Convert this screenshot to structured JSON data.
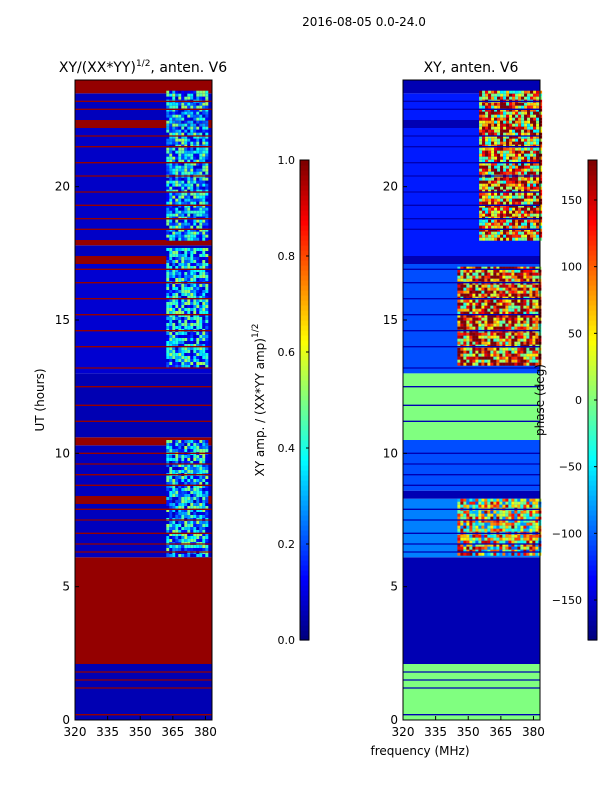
{
  "figure": {
    "suptitle": "2016-08-05 0.0-24.0",
    "shared_xlabel": "frequency (MHz)"
  },
  "chart_data": [
    {
      "type": "heatmap",
      "title": "XY/(XX*YY)",
      "title_exp": "1/2",
      "title_tail": ", anten. V6",
      "xlabel": "",
      "ylabel": "UT (hours)",
      "xlim": [
        320,
        383
      ],
      "ylim": [
        0,
        24
      ],
      "xticks": [
        320,
        335,
        350,
        365,
        380
      ],
      "yticks": [
        0,
        5,
        10,
        15,
        20
      ],
      "colorbar": {
        "label": "XY amp. / (XX*YY amp)",
        "label_exp": "1/2",
        "range": [
          0.0,
          1.0
        ],
        "ticks": [
          "0.0",
          "0.2",
          "0.4",
          "0.6",
          "0.8",
          "1.0"
        ],
        "tick_values": [
          0.0,
          0.2,
          0.4,
          0.6,
          0.8,
          1.0
        ],
        "colormap": "jet"
      },
      "bands": [
        {
          "t0": 0.0,
          "t1": 0.3,
          "value": 0.05
        },
        {
          "t0": 0.3,
          "t1": 2.1,
          "value": 0.05
        },
        {
          "t0": 2.1,
          "t1": 6.1,
          "value": 0.98
        },
        {
          "t0": 6.1,
          "t1": 8.1,
          "value": 0.06
        },
        {
          "t0": 8.1,
          "t1": 8.4,
          "value": 0.98
        },
        {
          "t0": 8.4,
          "t1": 10.3,
          "value": 0.06
        },
        {
          "t0": 10.3,
          "t1": 10.6,
          "value": 0.98
        },
        {
          "t0": 10.6,
          "t1": 13.0,
          "value": 0.05
        },
        {
          "t0": 13.0,
          "t1": 17.1,
          "value": 0.08
        },
        {
          "t0": 17.1,
          "t1": 17.4,
          "value": 0.98
        },
        {
          "t0": 17.4,
          "t1": 17.8,
          "value": 0.06
        },
        {
          "t0": 17.8,
          "t1": 18.0,
          "value": 0.98
        },
        {
          "t0": 18.0,
          "t1": 22.2,
          "value": 0.07
        },
        {
          "t0": 22.2,
          "t1": 22.5,
          "value": 0.98
        },
        {
          "t0": 22.5,
          "t1": 23.5,
          "value": 0.06
        },
        {
          "t0": 23.5,
          "t1": 24.0,
          "value": 0.98
        }
      ],
      "lines": [
        0.2,
        1.2,
        1.5,
        1.8,
        6.3,
        6.6,
        7.0,
        7.5,
        7.9,
        8.8,
        9.2,
        9.6,
        10.0,
        11.2,
        11.8,
        12.5,
        13.2,
        14.0,
        14.6,
        15.2,
        15.8,
        16.4,
        16.9,
        18.4,
        18.8,
        19.3,
        19.8,
        20.4,
        20.9,
        21.5,
        21.9,
        22.9,
        23.2
      ],
      "line_value": 0.98,
      "active_regions": [
        {
          "f0": 362,
          "f1": 380,
          "t0": 6.2,
          "t1": 10.5,
          "value": 0.3
        },
        {
          "f0": 362,
          "f1": 380,
          "t0": 13.3,
          "t1": 17.7,
          "value": 0.3
        },
        {
          "f0": 362,
          "f1": 380,
          "t0": 18.0,
          "t1": 23.6,
          "value": 0.3
        }
      ]
    },
    {
      "type": "heatmap",
      "title": "XY, anten. V6",
      "xlabel": "",
      "ylabel": "",
      "xlim": [
        320,
        383
      ],
      "ylim": [
        0,
        24
      ],
      "xticks": [
        320,
        335,
        350,
        365,
        380
      ],
      "yticks": [
        0,
        5,
        10,
        15,
        20
      ],
      "colorbar": {
        "label": "phase (deg)",
        "range": [
          -180,
          180
        ],
        "ticks": [
          "−150",
          "−100",
          "−50",
          "0",
          "50",
          "100",
          "150"
        ],
        "tick_values": [
          -150,
          -100,
          -50,
          0,
          50,
          100,
          150
        ],
        "colormap": "jet"
      },
      "bands": [
        {
          "t0": 0.0,
          "t1": 0.3,
          "value": 0.5
        },
        {
          "t0": 0.3,
          "t1": 2.1,
          "value": 0.5
        },
        {
          "t0": 2.1,
          "t1": 6.1,
          "value": 0.05
        },
        {
          "t0": 6.1,
          "t1": 8.3,
          "value": 0.25
        },
        {
          "t0": 8.3,
          "t1": 8.6,
          "value": 0.05
        },
        {
          "t0": 8.6,
          "t1": 10.5,
          "value": 0.2
        },
        {
          "t0": 10.5,
          "t1": 13.0,
          "value": 0.5
        },
        {
          "t0": 13.0,
          "t1": 17.1,
          "value": 0.2
        },
        {
          "t0": 17.1,
          "t1": 17.4,
          "value": 0.05
        },
        {
          "t0": 17.4,
          "t1": 22.2,
          "value": 0.15
        },
        {
          "t0": 22.2,
          "t1": 22.5,
          "value": 0.05
        },
        {
          "t0": 22.5,
          "t1": 23.5,
          "value": 0.15
        },
        {
          "t0": 23.5,
          "t1": 24.0,
          "value": 0.05
        }
      ],
      "lines": [
        0.2,
        1.2,
        1.5,
        1.8,
        6.3,
        6.6,
        7.0,
        7.5,
        7.9,
        8.8,
        9.2,
        9.6,
        10.0,
        11.2,
        11.8,
        12.5,
        13.2,
        14.0,
        14.6,
        15.2,
        15.8,
        16.4,
        16.9,
        18.4,
        18.8,
        19.3,
        19.8,
        20.4,
        20.9,
        21.5,
        21.9,
        22.9,
        23.2
      ],
      "line_value": 0.05,
      "active_regions": [
        {
          "f0": 345,
          "f1": 383,
          "t0": 6.2,
          "t1": 8.3,
          "value": 0.6
        },
        {
          "f0": 345,
          "f1": 383,
          "t0": 13.3,
          "t1": 17.0,
          "value": 0.8
        },
        {
          "f0": 355,
          "f1": 383,
          "t0": 18.0,
          "t1": 23.6,
          "value": 0.75
        }
      ]
    }
  ]
}
